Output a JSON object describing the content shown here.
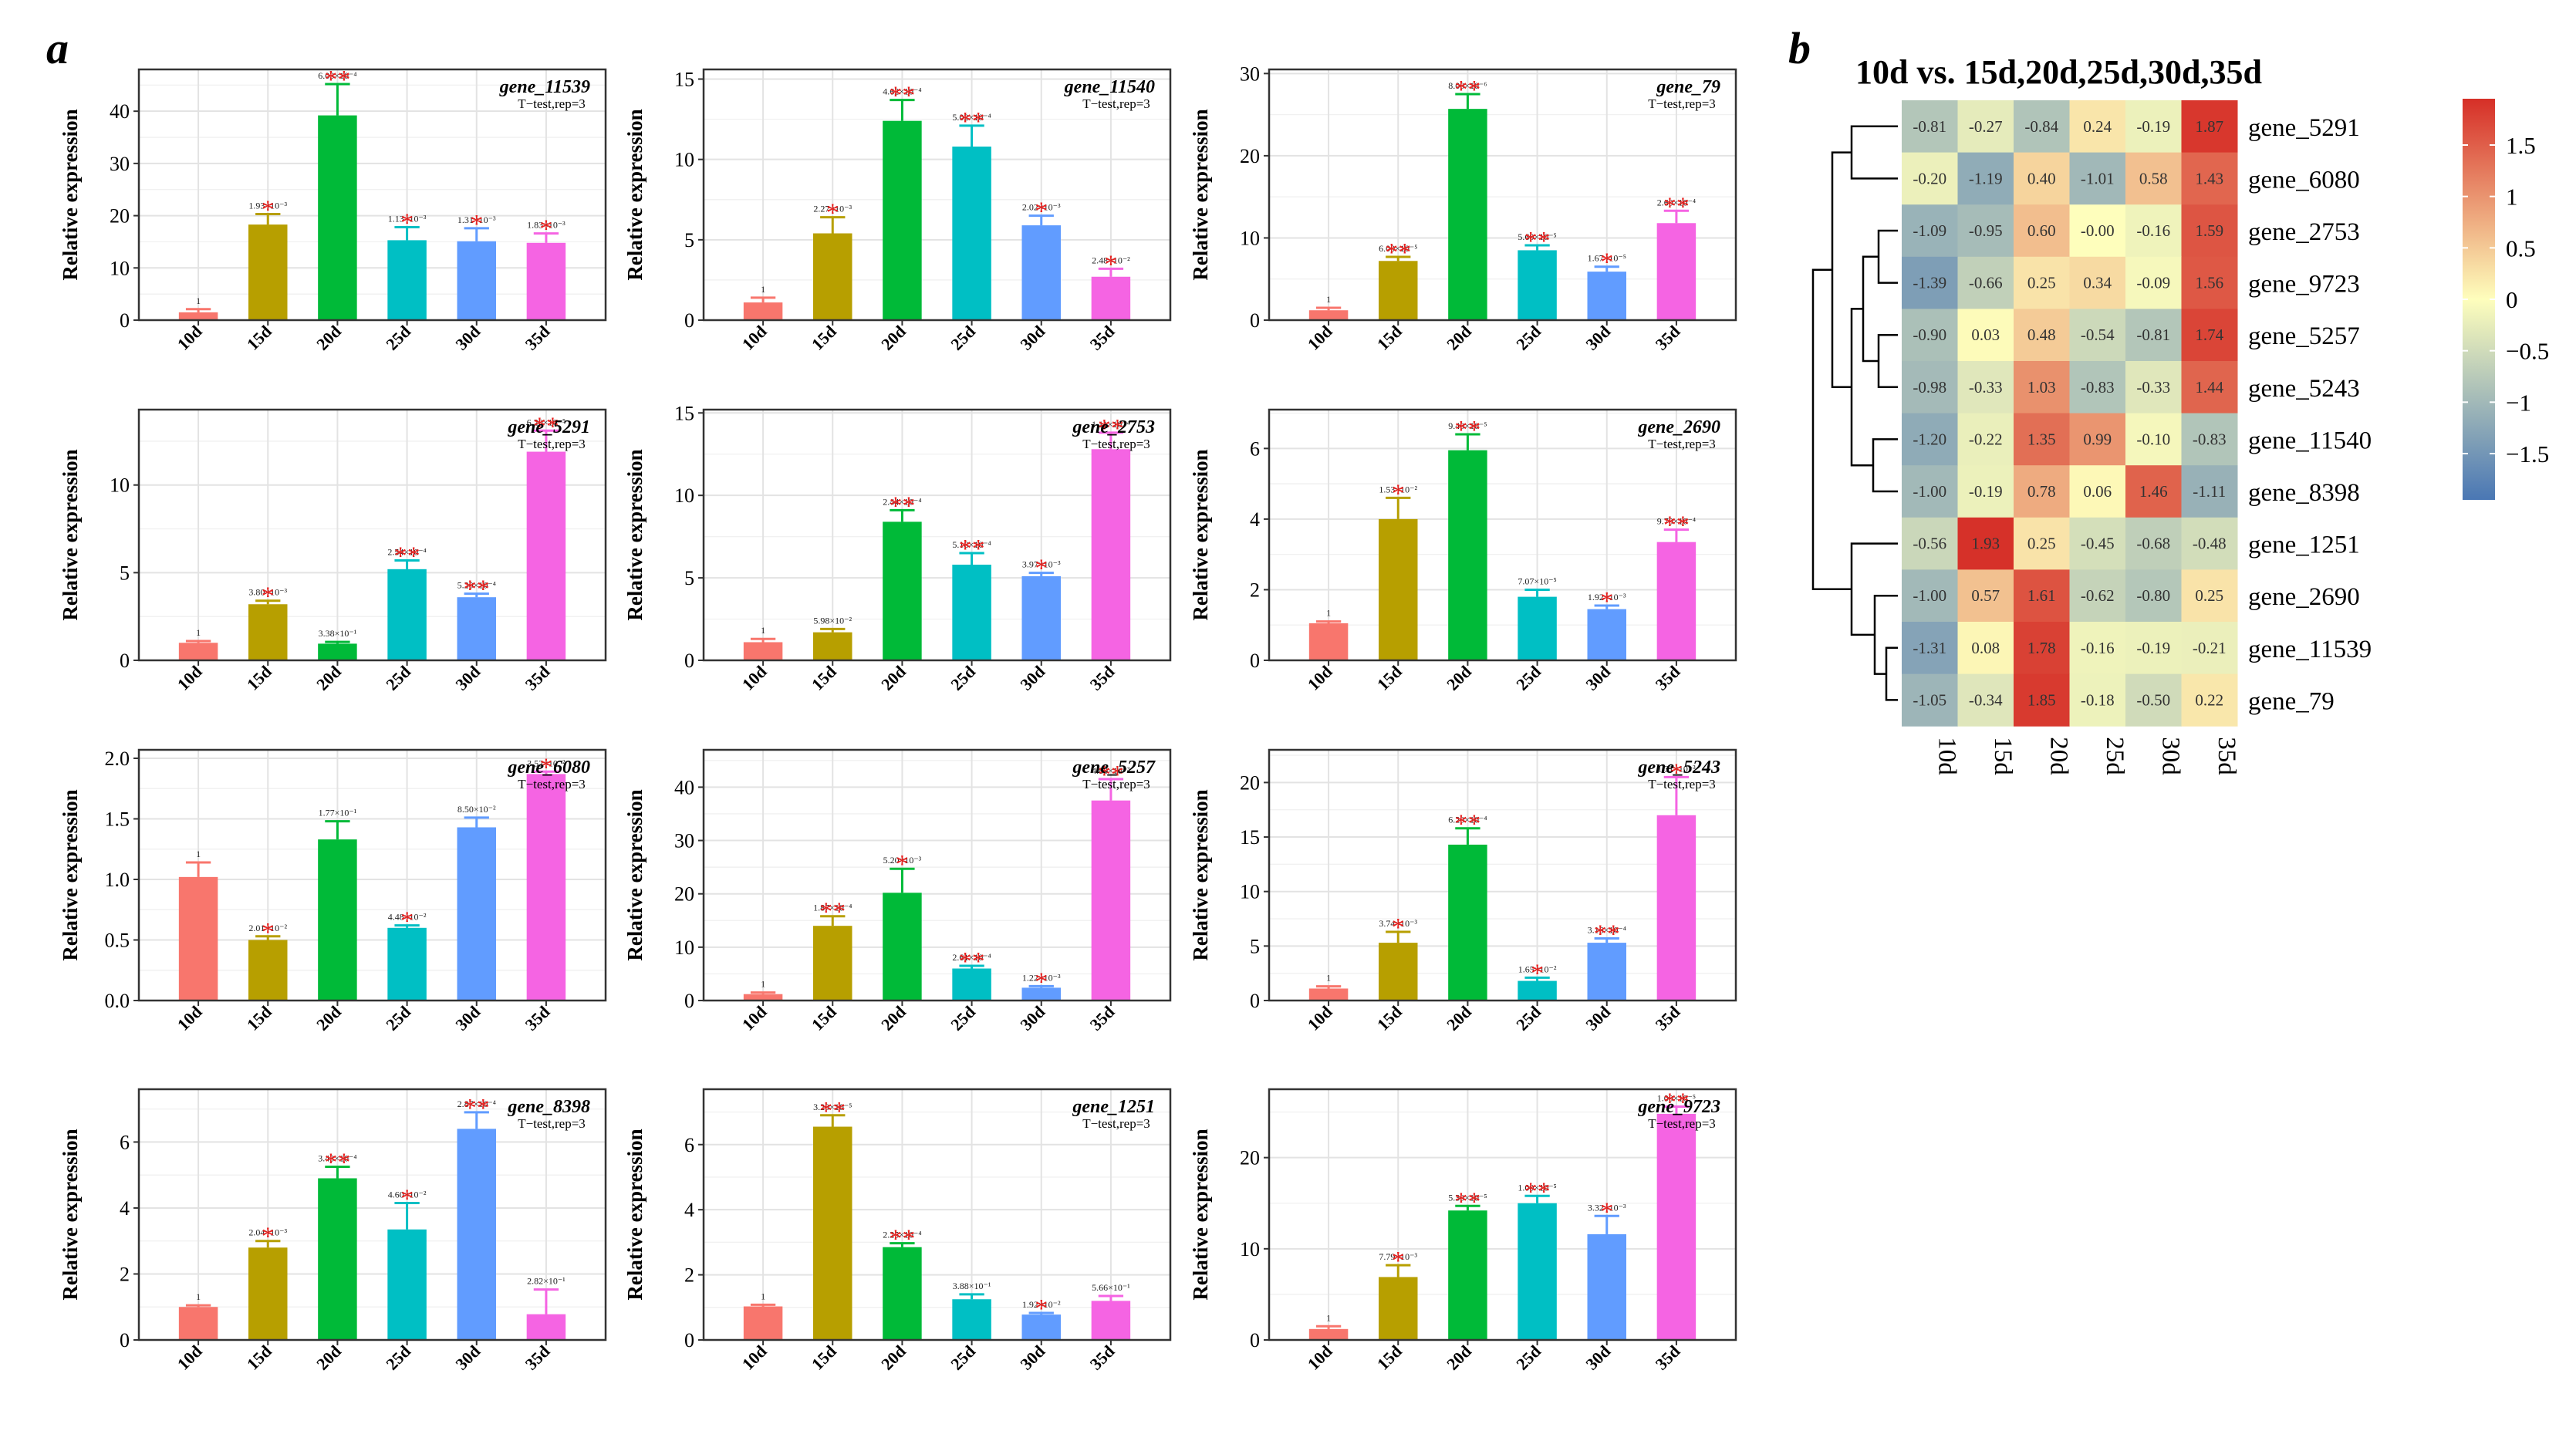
{
  "panel_labels": {
    "a": "a",
    "b": "b"
  },
  "colors": {
    "series": [
      "#f8766d",
      "#b79f00",
      "#00ba38",
      "#00bfc4",
      "#619cff",
      "#f564e3"
    ],
    "significance": "#e8211f",
    "heat_low": "#4a77b4",
    "heat_mid": "#fefebc",
    "heat_high": "#d62f27"
  },
  "chart_data": [
    {
      "type": "bar",
      "gene": "gene_11539",
      "test": "T−test,rep=3",
      "categories": [
        "10d",
        "15d",
        "20d",
        "25d",
        "30d",
        "35d"
      ],
      "values": [
        1.5,
        18.3,
        39.2,
        15.3,
        15.1,
        14.8
      ],
      "errors": [
        0.6,
        2.0,
        6.0,
        2.5,
        2.5,
        1.8
      ],
      "labels": [
        "1",
        "1.93×10⁻³",
        "6.03×10⁻⁴",
        "1.13×10⁻³",
        "1.31×10⁻³",
        "1.83×10⁻³"
      ],
      "stars": [
        "",
        "*",
        "**",
        "*",
        "*",
        "*"
      ],
      "ylabel": "Relative expression",
      "ylim": [
        0,
        48
      ],
      "yticks": [
        0,
        10,
        20,
        30,
        40
      ]
    },
    {
      "type": "bar",
      "gene": "gene_11540",
      "test": "T−test,rep=3",
      "categories": [
        "10d",
        "15d",
        "20d",
        "25d",
        "30d",
        "35d"
      ],
      "values": [
        1.1,
        5.4,
        12.4,
        10.8,
        5.9,
        2.7
      ],
      "errors": [
        0.3,
        1.0,
        1.3,
        1.3,
        0.6,
        0.5
      ],
      "labels": [
        "1",
        "2.27×10⁻³",
        "4.62×10⁻⁴",
        "5.02×10⁻⁴",
        "2.02×10⁻³",
        "2.48×10⁻²"
      ],
      "stars": [
        "",
        "*",
        "**",
        "**",
        "*",
        "*"
      ],
      "ylabel": "Relative expression",
      "ylim": [
        0,
        15.6
      ],
      "yticks": [
        0,
        5,
        10,
        15
      ]
    },
    {
      "type": "bar",
      "gene": "gene_79",
      "test": "T−test,rep=3",
      "categories": [
        "10d",
        "15d",
        "20d",
        "25d",
        "30d",
        "35d"
      ],
      "values": [
        1.2,
        7.2,
        25.7,
        8.5,
        5.9,
        11.8
      ],
      "errors": [
        0.3,
        0.5,
        1.8,
        0.6,
        0.6,
        1.5
      ],
      "labels": [
        "1",
        "6.00×10⁻⁵",
        "8.00×10⁻⁶",
        "5.60×10⁻⁵",
        "1.67×10⁻⁵",
        "2.60×10⁻⁴"
      ],
      "stars": [
        "",
        "**",
        "**",
        "**",
        "*",
        "**"
      ],
      "ylabel": "Relative expression",
      "ylim": [
        0,
        30.5
      ],
      "yticks": [
        0,
        10,
        20,
        30
      ]
    },
    {
      "type": "bar",
      "gene": "gene_5291",
      "test": "T−test,rep=3",
      "categories": [
        "10d",
        "15d",
        "20d",
        "25d",
        "30d",
        "35d"
      ],
      "values": [
        1.0,
        3.2,
        0.95,
        5.2,
        3.6,
        11.9
      ],
      "errors": [
        0.1,
        0.2,
        0.1,
        0.5,
        0.2,
        1.2
      ],
      "labels": [
        "1",
        "3.80×10⁻³",
        "3.38×10⁻¹",
        "2.54×10⁻⁴",
        "5.20×10⁻⁴",
        "6.20×10⁻⁵"
      ],
      "stars": [
        "",
        "*",
        "",
        "**",
        "**",
        "**"
      ],
      "ylabel": "Relative expression",
      "ylim": [
        0,
        14.3
      ],
      "yticks": [
        0,
        5,
        10
      ]
    },
    {
      "type": "bar",
      "gene": "gene_2753",
      "test": "T−test,rep=3",
      "categories": [
        "10d",
        "15d",
        "20d",
        "25d",
        "30d",
        "35d"
      ],
      "values": [
        1.1,
        1.7,
        8.4,
        5.8,
        5.1,
        12.8
      ],
      "errors": [
        0.2,
        0.2,
        0.7,
        0.7,
        0.2,
        1.0
      ],
      "labels": [
        "1",
        "5.98×10⁻²",
        "2.44×10⁻⁴",
        "5.18×10⁻⁴",
        "3.97×10⁻³",
        "1.11×10⁻⁴"
      ],
      "stars": [
        "",
        "",
        "**",
        "**",
        "*",
        "**"
      ],
      "ylabel": "Relative expression",
      "ylim": [
        0,
        15.2
      ],
      "yticks": [
        0,
        5,
        10,
        15
      ]
    },
    {
      "type": "bar",
      "gene": "gene_2690",
      "test": "T−test,rep=3",
      "categories": [
        "10d",
        "15d",
        "20d",
        "25d",
        "30d",
        "35d"
      ],
      "values": [
        1.05,
        4.0,
        5.95,
        1.8,
        1.45,
        3.35
      ],
      "errors": [
        0.05,
        0.6,
        0.45,
        0.2,
        0.1,
        0.35
      ],
      "labels": [
        "1",
        "1.53×10⁻²",
        "9.40×10⁻⁵",
        "7.07×10⁻⁵",
        "1.92×10⁻³",
        "9.70×10⁻⁴"
      ],
      "stars": [
        "",
        "*",
        "**",
        "",
        "*",
        "**"
      ],
      "ylabel": "Relative expression",
      "ylim": [
        0,
        7.1
      ],
      "yticks": [
        0,
        2,
        4,
        6
      ]
    },
    {
      "type": "bar",
      "gene": "gene_6080",
      "test": "T−test,rep=3",
      "categories": [
        "10d",
        "15d",
        "20d",
        "25d",
        "30d",
        "35d"
      ],
      "values": [
        1.02,
        0.5,
        1.33,
        0.6,
        1.43,
        1.87
      ],
      "errors": [
        0.12,
        0.03,
        0.15,
        0.02,
        0.08,
        0.02
      ],
      "labels": [
        "1",
        "2.01×10⁻²",
        "1.77×10⁻¹",
        "4.48×10⁻²",
        "8.50×10⁻²",
        "3.52×10⁻²"
      ],
      "stars": [
        "",
        "*",
        "",
        "*",
        "",
        "*"
      ],
      "ylabel": "Relative expression",
      "ylim": [
        0,
        2.07
      ],
      "yticks": [
        0.0,
        0.5,
        1.0,
        1.5,
        2.0
      ],
      "ytick_labels": [
        "0.0",
        "0.5",
        "1.0",
        "1.5",
        "2.0"
      ]
    },
    {
      "type": "bar",
      "gene": "gene_5257",
      "test": "T−test,rep=3",
      "categories": [
        "10d",
        "15d",
        "20d",
        "25d",
        "30d",
        "35d"
      ],
      "values": [
        1.2,
        14.0,
        20.2,
        6.0,
        2.4,
        37.5
      ],
      "errors": [
        0.3,
        1.8,
        4.5,
        0.5,
        0.3,
        4.0
      ],
      "labels": [
        "1",
        "1.87×10⁻⁴",
        "5.20×10⁻³",
        "2.61×10⁻⁴",
        "1.22×10⁻³",
        "4.80×10⁻³"
      ],
      "stars": [
        "",
        "**",
        "*",
        "**",
        "*",
        "**"
      ],
      "ylabel": "Relative expression",
      "ylim": [
        0,
        47
      ],
      "yticks": [
        0,
        10,
        20,
        30,
        40
      ]
    },
    {
      "type": "bar",
      "gene": "gene_5243",
      "test": "T−test,rep=3",
      "categories": [
        "10d",
        "15d",
        "20d",
        "25d",
        "30d",
        "35d"
      ],
      "values": [
        1.1,
        5.3,
        14.3,
        1.8,
        5.3,
        17.0
      ],
      "errors": [
        0.2,
        1.0,
        1.5,
        0.3,
        0.4,
        3.5
      ],
      "labels": [
        "1",
        "3.74×10⁻³",
        "6.20×10⁻⁴",
        "1.65×10⁻²",
        "3.16×10⁻⁴",
        "1.31×10⁻³"
      ],
      "stars": [
        "",
        "*",
        "**",
        "*",
        "**",
        "*"
      ],
      "ylabel": "Relative expression",
      "ylim": [
        0,
        23
      ],
      "yticks": [
        0,
        5,
        10,
        15,
        20
      ]
    },
    {
      "type": "bar",
      "gene": "gene_8398",
      "test": "T−test,rep=3",
      "categories": [
        "10d",
        "15d",
        "20d",
        "25d",
        "30d",
        "35d"
      ],
      "values": [
        1.0,
        2.8,
        4.9,
        3.35,
        6.4,
        0.78
      ],
      "errors": [
        0.05,
        0.2,
        0.35,
        0.8,
        0.5,
        0.75
      ],
      "labels": [
        "1",
        "2.04×10⁻³",
        "3.43×10⁻⁴",
        "4.60×10⁻²",
        "2.87×10⁻⁴",
        "2.82×10⁻¹"
      ],
      "stars": [
        "",
        "*",
        "**",
        "*",
        "**",
        ""
      ],
      "ylabel": "Relative expression",
      "ylim": [
        0,
        7.6
      ],
      "yticks": [
        0,
        2,
        4,
        6
      ]
    },
    {
      "type": "bar",
      "gene": "gene_1251",
      "test": "T−test,rep=3",
      "categories": [
        "10d",
        "15d",
        "20d",
        "25d",
        "30d",
        "35d"
      ],
      "values": [
        1.03,
        6.55,
        2.85,
        1.25,
        0.78,
        1.2
      ],
      "errors": [
        0.05,
        0.35,
        0.12,
        0.15,
        0.05,
        0.15
      ],
      "labels": [
        "1",
        "3.20×10⁻⁵",
        "2.25×10⁻⁴",
        "3.88×10⁻¹",
        "1.92×10⁻²",
        "5.66×10⁻¹"
      ],
      "stars": [
        "",
        "**",
        "**",
        "",
        "*",
        ""
      ],
      "ylabel": "Relative expression",
      "ylim": [
        0,
        7.7
      ],
      "yticks": [
        0,
        2,
        4,
        6
      ]
    },
    {
      "type": "bar",
      "gene": "gene_9723",
      "test": "T−test,rep=3",
      "categories": [
        "10d",
        "15d",
        "20d",
        "25d",
        "30d",
        "35d"
      ],
      "values": [
        1.2,
        6.9,
        14.2,
        15.0,
        11.6,
        24.8
      ],
      "errors": [
        0.3,
        1.3,
        0.5,
        0.8,
        2.0,
        0.8
      ],
      "labels": [
        "1",
        "7.79×10⁻³",
        "5.30×10⁻⁵",
        "1.00×10⁻⁵",
        "3.32×10⁻³",
        "1.00×10⁻⁵"
      ],
      "stars": [
        "",
        "*",
        "**",
        "**",
        "*",
        "**"
      ],
      "ylabel": "Relative expression",
      "ylim": [
        0,
        27.5
      ],
      "yticks": [
        0,
        10,
        20
      ]
    },
    {
      "type": "heatmap",
      "title": "10d vs. 15d,20d,25d,30d,35d",
      "columns": [
        "10d",
        "15d",
        "20d",
        "25d",
        "30d",
        "35d"
      ],
      "rows": [
        "gene_5291",
        "gene_6080",
        "gene_2753",
        "gene_9723",
        "gene_5257",
        "gene_5243",
        "gene_11540",
        "gene_8398",
        "gene_1251",
        "gene_2690",
        "gene_11539",
        "gene_79"
      ],
      "values": [
        [
          -0.81,
          -0.27,
          -0.84,
          0.24,
          -0.19,
          1.87
        ],
        [
          -0.2,
          -1.19,
          0.4,
          -1.01,
          0.58,
          1.43
        ],
        [
          -1.09,
          -0.95,
          0.6,
          -0.0,
          -0.16,
          1.59
        ],
        [
          -1.39,
          -0.66,
          0.25,
          0.34,
          -0.09,
          1.56
        ],
        [
          -0.9,
          0.03,
          0.48,
          -0.54,
          -0.81,
          1.74
        ],
        [
          -0.98,
          -0.33,
          1.03,
          -0.83,
          -0.33,
          1.44
        ],
        [
          -1.2,
          -0.22,
          1.35,
          0.99,
          -0.1,
          -0.83
        ],
        [
          -1.0,
          -0.19,
          0.78,
          0.06,
          1.46,
          -1.11
        ],
        [
          -0.56,
          1.93,
          0.25,
          -0.45,
          -0.68,
          -0.48
        ],
        [
          -1.0,
          0.57,
          1.61,
          -0.62,
          -0.8,
          0.25
        ],
        [
          -1.31,
          0.08,
          1.78,
          -0.16,
          -0.19,
          -0.21
        ],
        [
          -1.05,
          -0.34,
          1.85,
          -0.18,
          -0.5,
          0.22
        ]
      ],
      "cell_labels": [
        [
          "-0.81",
          "-0.27",
          "-0.84",
          "0.24",
          "-0.19",
          "1.87"
        ],
        [
          "-0.20",
          "-1.19",
          "0.40",
          "-1.01",
          "0.58",
          "1.43"
        ],
        [
          "-1.09",
          "-0.95",
          "0.60",
          "-0.00",
          "-0.16",
          "1.59"
        ],
        [
          "-1.39",
          "-0.66",
          "0.25",
          "0.34",
          "-0.09",
          "1.56"
        ],
        [
          "-0.90",
          "0.03",
          "0.48",
          "-0.54",
          "-0.81",
          "1.74"
        ],
        [
          "-0.98",
          "-0.33",
          "1.03",
          "-0.83",
          "-0.33",
          "1.44"
        ],
        [
          "-1.20",
          "-0.22",
          "1.35",
          "0.99",
          "-0.10",
          "-0.83"
        ],
        [
          "-1.00",
          "-0.19",
          "0.78",
          "0.06",
          "1.46",
          "-1.11"
        ],
        [
          "-0.56",
          "1.93",
          "0.25",
          "-0.45",
          "-0.68",
          "-0.48"
        ],
        [
          "-1.00",
          "0.57",
          "1.61",
          "-0.62",
          "-0.80",
          "0.25"
        ],
        [
          "-1.31",
          "0.08",
          "1.78",
          "-0.16",
          "-0.19",
          "-0.21"
        ],
        [
          "-1.05",
          "-0.34",
          "1.85",
          "-0.18",
          "-0.50",
          "0.22"
        ]
      ],
      "legend_range": [
        -1.95,
        1.95
      ],
      "legend_ticks": [
        1.5,
        1,
        0.5,
        0,
        -0.5,
        -1,
        -1.5
      ],
      "legend_tick_labels": [
        "1.5",
        "1",
        "0.5",
        "0",
        "−0.5",
        "−1",
        "−1.5"
      ],
      "dendrogram": "row clustering tree on left"
    }
  ]
}
